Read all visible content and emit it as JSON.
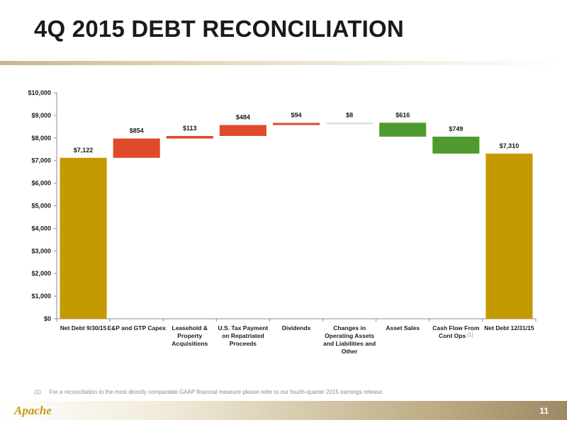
{
  "page": {
    "title": "4Q 2015 DEBT RECONCILIATION",
    "footnote_number": "(1)",
    "footnote_text": "For a reconciliation to the most directly comparable GAAP financial measure please refer to our fourth-quarter 2015 earnings release.",
    "logo_text": "Apache",
    "page_number": "11"
  },
  "colors": {
    "total": "#C59A00",
    "increase": "#E0492A",
    "decrease": "#4E9A2F",
    "neutral": "#D9D9D9"
  },
  "chart_data": {
    "type": "bar",
    "subtype": "waterfall",
    "title": "",
    "xlabel": "",
    "ylabel": "",
    "ylim": [
      0,
      10000
    ],
    "yticks": [
      0,
      1000,
      2000,
      3000,
      4000,
      5000,
      6000,
      7000,
      8000,
      9000,
      10000
    ],
    "ytick_labels": [
      "$0",
      "$1,000",
      "$2,000",
      "$3,000",
      "$4,000",
      "$5,000",
      "$6,000",
      "$7,000",
      "$8,000",
      "$9,000",
      "$10,000"
    ],
    "grid": false,
    "legend": "none",
    "bars": [
      {
        "category": [
          "Net Debt 9/30/15"
        ],
        "kind": "total",
        "start": 0,
        "end": 7122,
        "label": "$7,122"
      },
      {
        "category": [
          "E&P and GTP Capex"
        ],
        "kind": "increase",
        "start": 7122,
        "end": 7976,
        "label": "$854"
      },
      {
        "category": [
          "Leasehold &",
          "Property",
          "Acquisitions"
        ],
        "kind": "increase",
        "start": 7976,
        "end": 8089,
        "label": "$113"
      },
      {
        "category": [
          "U.S. Tax Payment",
          "on Repatriated",
          "Proceeds"
        ],
        "kind": "increase",
        "start": 8089,
        "end": 8573,
        "label": "$484"
      },
      {
        "category": [
          "Dividends"
        ],
        "kind": "increase",
        "start": 8573,
        "end": 8667,
        "label": "$94"
      },
      {
        "category": [
          "Changes in",
          "Operating Assets",
          "and Liabilities and",
          "Other"
        ],
        "kind": "neutral",
        "start": 8667,
        "end": 8675,
        "label": "$8"
      },
      {
        "category": [
          "Asset Sales"
        ],
        "kind": "decrease",
        "start": 8675,
        "end": 8059,
        "label": "$616"
      },
      {
        "category": [
          "Cash Flow From",
          "Cont Ops"
        ],
        "kind": "decrease",
        "start": 8059,
        "end": 7310,
        "label": "$749",
        "superscript": "(1)"
      },
      {
        "category": [
          "Net Debt 12/31/15"
        ],
        "kind": "total",
        "start": 0,
        "end": 7310,
        "label": "$7,310"
      }
    ]
  }
}
